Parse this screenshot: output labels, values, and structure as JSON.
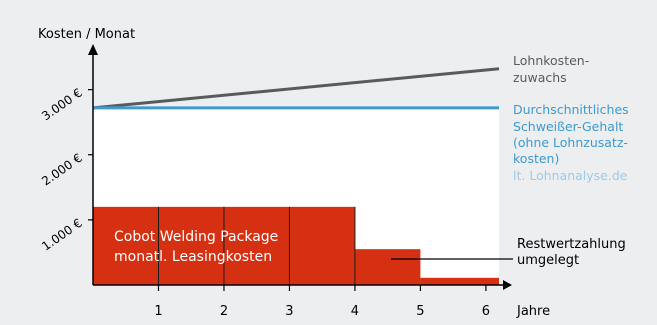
{
  "chart_data": {
    "type": "bar",
    "ylabel": "Kosten / Monat",
    "xlabel": "Jahre",
    "x_ticks": [
      1,
      2,
      3,
      4,
      5,
      6
    ],
    "y_ticks": [
      {
        "value": 1000,
        "label": "1.000 €"
      },
      {
        "value": 2000,
        "label": "2.000 €"
      },
      {
        "value": 3000,
        "label": "3.000 €"
      }
    ],
    "xlim": [
      0,
      6.2
    ],
    "ylim": [
      0,
      3900
    ],
    "bars": [
      {
        "x0": 0,
        "x1": 4,
        "value": 1200
      },
      {
        "x0": 4,
        "x1": 5,
        "value": 550
      },
      {
        "x0": 5,
        "x1": 6.2,
        "value": 110
      }
    ],
    "series": [
      {
        "name": "Lohnkosten-zuwachs",
        "color": "#5a5a5a",
        "points": [
          [
            0,
            2720
          ],
          [
            6.2,
            3320
          ]
        ]
      },
      {
        "name": "Durchschnittliches Schweißer-Gehalt (ohne Lohnzusatz-kosten)",
        "color": "#3d9ad6",
        "points": [
          [
            0,
            2720
          ],
          [
            6.2,
            2720
          ]
        ]
      }
    ],
    "annotations": {
      "bar_label": [
        "Cobot Welding Package",
        "monatl. Leasingkosten"
      ],
      "restwert": [
        "Restwertzahlung",
        "umgelegt"
      ],
      "lohn_label": [
        "Lohnkosten-",
        "zuwachs"
      ],
      "gehalt_label": [
        "Durchschnittliches",
        "Schweißer-Gehalt",
        "(ohne Lohnzusatz-",
        "kosten)"
      ],
      "source": "lt. Lohnanalyse.de"
    },
    "colors": {
      "bar": "#d63012",
      "bar_divider": "#1a1a1a",
      "plot_bg": "#ffffff",
      "axis": "#000000",
      "gehalt": "#3d9ad6",
      "lohn": "#5a5a5a",
      "source": "#9ccbe9"
    }
  }
}
